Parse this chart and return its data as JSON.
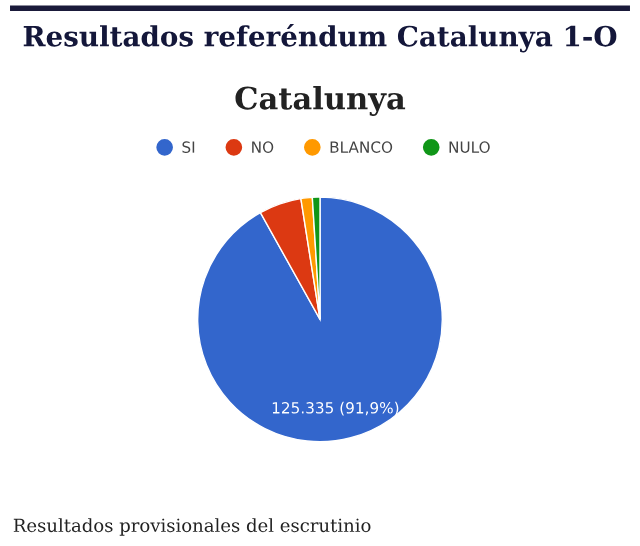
{
  "chart_data": {
    "type": "pie",
    "title": "Resultados referéndum Catalunya 1-O",
    "subtitle": "Catalunya",
    "categories": [
      "SI",
      "NO",
      "BLANCO",
      "NULO"
    ],
    "values": [
      91.9,
      5.6,
      1.5,
      1.0
    ],
    "colors": [
      "#3366cc",
      "#dc3912",
      "#ff9900",
      "#109618"
    ],
    "value_labels": [
      "125.335 (91,9%)",
      null,
      null,
      null
    ],
    "legend": "top",
    "annotations": [
      "Resultados provisionales del escrutinio"
    ]
  }
}
